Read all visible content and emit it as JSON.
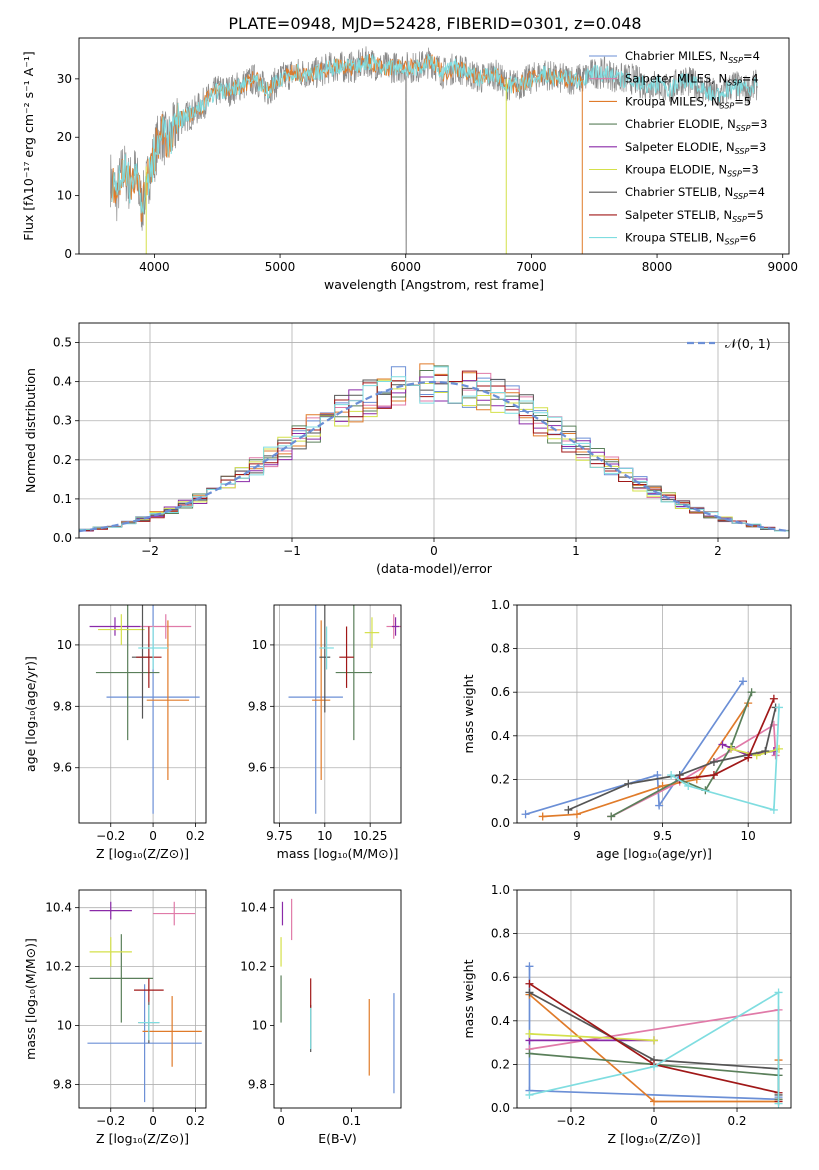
{
  "title": "PLATE=0948, MJD=52428, FIBERID=0301, z=0.048",
  "colors": [
    "#6b8fd6",
    "#e07aa8",
    "#e07b2a",
    "#5a7f5a",
    "#8a2aa8",
    "#d4e04a",
    "#555555",
    "#a01818",
    "#7fdde0",
    "#8a8a8a"
  ],
  "chart_data": [
    {
      "id": "spectrum",
      "type": "line",
      "xlabel": "wavelength [Angstrom, rest frame]",
      "ylabel": "Flux [fλ10⁻¹⁷ erg cm⁻² s⁻¹ A⁻¹]",
      "xlim": [
        3400,
        9050
      ],
      "ylim": [
        0,
        37
      ],
      "xticks": [
        4000,
        5000,
        6000,
        7000,
        8000,
        9000
      ],
      "yticks": [
        0,
        10,
        20,
        30
      ],
      "observed_x": [
        3650,
        3700,
        3750,
        3800,
        3850,
        3900,
        3950,
        4000,
        4050,
        4100,
        4200,
        4300,
        4400,
        4500,
        4600,
        4700,
        4800,
        4900,
        5000,
        5100,
        5200,
        5300,
        5400,
        5500,
        5600,
        5700,
        5800,
        5900,
        6000,
        6100,
        6200,
        6300,
        6400,
        6500,
        6600,
        6700,
        6800,
        6900,
        7000,
        7100,
        7200,
        7300,
        7400,
        7500,
        7600,
        7700,
        7800,
        7900,
        8000,
        8100,
        8200,
        8300,
        8400,
        8500,
        8600,
        8700,
        8800
      ],
      "observed_y": [
        13,
        10,
        15,
        12,
        14,
        8,
        13,
        17,
        21,
        19,
        23,
        24,
        26,
        28,
        28,
        29,
        30,
        28,
        30,
        31,
        31,
        31,
        32,
        32,
        32,
        33,
        32,
        32,
        32,
        32,
        33,
        31,
        32,
        31,
        30,
        31,
        29,
        29,
        30,
        31,
        30,
        30,
        30,
        31,
        31,
        30,
        30,
        29,
        29,
        28,
        30,
        29,
        28,
        27,
        29,
        28,
        29
      ],
      "series": [
        {
          "name": "Chabrier MILES, Nₛₛₚ=4",
          "label_main": "Chabrier MILES, N",
          "label_sub": "SSP",
          "label_tail": "=4"
        },
        {
          "name": "Salpeter MILES, Nₛₛₚ=4",
          "label_main": "Salpeter MILES, N",
          "label_sub": "SSP",
          "label_tail": "=4"
        },
        {
          "name": "Kroupa MILES, Nₛₛₚ=5",
          "label_main": "Kroupa MILES, N",
          "label_sub": "SSP",
          "label_tail": "=5"
        },
        {
          "name": "Chabrier ELODIE, Nₛₛₚ=3",
          "label_main": "Chabrier ELODIE, N",
          "label_sub": "SSP",
          "label_tail": "=3"
        },
        {
          "name": "Salpeter ELODIE, Nₛₛₚ=3",
          "label_main": "Salpeter ELODIE, N",
          "label_sub": "SSP",
          "label_tail": "=3"
        },
        {
          "name": "Kroupa ELODIE, Nₛₛₚ=3",
          "label_main": "Kroupa ELODIE, N",
          "label_sub": "SSP",
          "label_tail": "=3"
        },
        {
          "name": "Chabrier STELIB, Nₛₛₚ=4",
          "label_main": "Chabrier STELIB, N",
          "label_sub": "SSP",
          "label_tail": "=4"
        },
        {
          "name": "Salpeter STELIB, Nₛₛₚ=5",
          "label_main": "Salpeter STELIB, N",
          "label_sub": "SSP",
          "label_tail": "=5"
        },
        {
          "name": "Kroupa STELIB, Nₛₛₚ=6",
          "label_main": "Kroupa STELIB, N",
          "label_sub": "SSP",
          "label_tail": "=6"
        }
      ],
      "legend": "top-right",
      "grid": false
    },
    {
      "id": "residuals",
      "type": "histogram",
      "xlabel": "(data-model)/error",
      "ylabel": "Normed distribution",
      "xlim": [
        -2.5,
        2.5
      ],
      "ylim": [
        0,
        0.55
      ],
      "xticks": [
        -2,
        -1,
        0,
        1,
        2
      ],
      "yticks": [
        0.0,
        0.1,
        0.2,
        0.3,
        0.4,
        0.5
      ],
      "bin_width": 0.1,
      "reference_curve": "N(0,1)",
      "legend_label": "𝒩(0, 1)",
      "legend": "top-right",
      "grid": true
    },
    {
      "id": "age_vs_Z",
      "type": "errorbar",
      "xlabel": "Z [log₁₀(Z/Z⊙)]",
      "ylabel": "age  [log₁₀(age/yr)]",
      "xlim": [
        -0.35,
        0.25
      ],
      "ylim": [
        9.42,
        10.13
      ],
      "xticks": [
        -0.2,
        0.0,
        0.2
      ],
      "yticks": [
        9.6,
        9.8,
        10.0
      ],
      "points": [
        {
          "x": 0.0,
          "y": 9.83,
          "xerr": 0.22,
          "yerr": 0.38,
          "c": 0
        },
        {
          "x": 0.06,
          "y": 10.06,
          "xerr": 0.12,
          "yerr": 0.04,
          "c": 1
        },
        {
          "x": 0.07,
          "y": 9.82,
          "xerr": 0.1,
          "yerr": 0.26,
          "c": 2
        },
        {
          "x": -0.12,
          "y": 9.91,
          "xerr": 0.15,
          "yerr": 0.22,
          "c": 3
        },
        {
          "x": -0.18,
          "y": 10.06,
          "xerr": 0.12,
          "yerr": 0.03,
          "c": 4
        },
        {
          "x": -0.15,
          "y": 10.05,
          "xerr": 0.11,
          "yerr": 0.05,
          "c": 5
        },
        {
          "x": -0.05,
          "y": 9.96,
          "xerr": 0.05,
          "yerr": 0.2,
          "c": 6
        },
        {
          "x": -0.02,
          "y": 9.96,
          "xerr": 0.06,
          "yerr": 0.1,
          "c": 7
        },
        {
          "x": 0.0,
          "y": 9.99,
          "xerr": 0.07,
          "yerr": 0.07,
          "c": 8
        }
      ],
      "grid": true
    },
    {
      "id": "age_vs_mass",
      "type": "errorbar",
      "xlabel": "mass [log₁₀(M/M⊙)]",
      "ylabel": "",
      "xlim": [
        9.72,
        10.42
      ],
      "ylim": [
        9.42,
        10.13
      ],
      "xticks": [
        9.75,
        10.0,
        10.25
      ],
      "yticks": [
        9.6,
        9.8,
        10.0
      ],
      "points": [
        {
          "x": 9.95,
          "y": 9.83,
          "xerr": 0.15,
          "yerr": 0.38,
          "c": 0
        },
        {
          "x": 10.38,
          "y": 10.06,
          "xerr": 0.04,
          "yerr": 0.04,
          "c": 1
        },
        {
          "x": 9.98,
          "y": 9.82,
          "xerr": 0.05,
          "yerr": 0.26,
          "c": 2
        },
        {
          "x": 10.16,
          "y": 9.91,
          "xerr": 0.1,
          "yerr": 0.22,
          "c": 3
        },
        {
          "x": 10.39,
          "y": 10.06,
          "xerr": 0.02,
          "yerr": 0.03,
          "c": 4
        },
        {
          "x": 10.26,
          "y": 10.04,
          "xerr": 0.04,
          "yerr": 0.05,
          "c": 5
        },
        {
          "x": 10.0,
          "y": 9.96,
          "xerr": 0.03,
          "yerr": 0.18,
          "c": 6
        },
        {
          "x": 10.12,
          "y": 9.96,
          "xerr": 0.04,
          "yerr": 0.1,
          "c": 7
        },
        {
          "x": 10.01,
          "y": 9.99,
          "xerr": 0.04,
          "yerr": 0.07,
          "c": 8
        }
      ],
      "grid": true
    },
    {
      "id": "massweight_vs_age",
      "type": "line",
      "xlabel": "age  [log₁₀(age/yr)]",
      "ylabel": "mass weight",
      "xlim": [
        8.65,
        10.25
      ],
      "ylim": [
        0.0,
        1.0
      ],
      "xticks": [
        9.0,
        9.5,
        10.0
      ],
      "yticks": [
        0.0,
        0.2,
        0.4,
        0.6,
        0.8,
        1.0
      ],
      "series": [
        {
          "c": 0,
          "x": [
            8.7,
            9.47,
            9.48,
            9.97
          ],
          "y": [
            0.04,
            0.22,
            0.08,
            0.65
          ]
        },
        {
          "c": 1,
          "x": [
            9.2,
            9.6,
            10.15,
            10.16
          ],
          "y": [
            0.03,
            0.19,
            0.45,
            0.31
          ]
        },
        {
          "c": 2,
          "x": [
            8.8,
            9.0,
            9.5,
            9.7,
            10.0
          ],
          "y": [
            0.03,
            0.04,
            0.17,
            0.2,
            0.55
          ]
        },
        {
          "c": 3,
          "x": [
            9.2,
            9.6,
            9.75,
            9.9,
            10.02
          ],
          "y": [
            0.03,
            0.2,
            0.15,
            0.35,
            0.6
          ]
        },
        {
          "c": 4,
          "x": [
            9.85,
            10.0,
            10.15
          ],
          "y": [
            0.36,
            0.31,
            0.33
          ]
        },
        {
          "c": 5,
          "x": [
            9.9,
            10.05,
            10.18
          ],
          "y": [
            0.34,
            0.31,
            0.34
          ]
        },
        {
          "c": 6,
          "x": [
            8.95,
            9.3,
            9.6,
            9.8,
            10.1,
            10.16
          ],
          "y": [
            0.06,
            0.18,
            0.22,
            0.28,
            0.33,
            0.53
          ]
        },
        {
          "c": 7,
          "x": [
            9.6,
            9.8,
            10.0,
            10.15
          ],
          "y": [
            0.2,
            0.22,
            0.3,
            0.57
          ]
        },
        {
          "c": 8,
          "x": [
            9.55,
            9.65,
            10.15,
            10.18
          ],
          "y": [
            0.22,
            0.17,
            0.06,
            0.53
          ]
        }
      ],
      "grid": true
    },
    {
      "id": "mass_vs_Z",
      "type": "errorbar",
      "xlabel": "Z [log₁₀(Z/Z⊙)]",
      "ylabel": "mass [log₁₀(M/M⊙)]",
      "xlim": [
        -0.35,
        0.25
      ],
      "ylim": [
        9.72,
        10.46
      ],
      "xticks": [
        -0.2,
        0.0,
        0.2
      ],
      "yticks": [
        9.8,
        10.0,
        10.2,
        10.4
      ],
      "points": [
        {
          "x": -0.04,
          "y": 9.94,
          "xerr": 0.27,
          "yerr": 0.2,
          "c": 0
        },
        {
          "x": 0.1,
          "y": 10.38,
          "xerr": 0.1,
          "yerr": 0.04,
          "c": 1
        },
        {
          "x": 0.09,
          "y": 9.98,
          "xerr": 0.14,
          "yerr": 0.12,
          "c": 2
        },
        {
          "x": -0.15,
          "y": 10.16,
          "xerr": 0.15,
          "yerr": 0.15,
          "c": 3
        },
        {
          "x": -0.2,
          "y": 10.39,
          "xerr": 0.1,
          "yerr": 0.03,
          "c": 4
        },
        {
          "x": -0.2,
          "y": 10.25,
          "xerr": 0.1,
          "yerr": 0.05,
          "c": 5
        },
        {
          "x": -0.02,
          "y": 10.01,
          "xerr": 0.05,
          "yerr": 0.07,
          "c": 6
        },
        {
          "x": -0.02,
          "y": 10.12,
          "xerr": 0.07,
          "yerr": 0.04,
          "c": 7
        },
        {
          "x": -0.02,
          "y": 10.01,
          "xerr": 0.05,
          "yerr": 0.06,
          "c": 8
        }
      ],
      "grid": true
    },
    {
      "id": "mass_vs_EBV",
      "type": "errorbar",
      "xlabel": "E(B-V)",
      "ylabel": "",
      "xlim": [
        -0.01,
        0.17
      ],
      "ylim": [
        9.72,
        10.46
      ],
      "xticks": [
        0.0,
        0.1
      ],
      "yticks": [
        9.8,
        10.0,
        10.2,
        10.4
      ],
      "points": [
        {
          "x": 0.16,
          "y": 9.94,
          "xerr": 0,
          "yerr": 0.17,
          "c": 0
        },
        {
          "x": 0.015,
          "y": 10.36,
          "xerr": 0,
          "yerr": 0.07,
          "c": 1
        },
        {
          "x": 0.125,
          "y": 9.96,
          "xerr": 0,
          "yerr": 0.13,
          "c": 2
        },
        {
          "x": 0.0,
          "y": 10.09,
          "xerr": 0,
          "yerr": 0.08,
          "c": 3
        },
        {
          "x": 0.002,
          "y": 10.38,
          "xerr": 0,
          "yerr": 0.04,
          "c": 4
        },
        {
          "x": 0.0,
          "y": 10.25,
          "xerr": 0,
          "yerr": 0.05,
          "c": 5
        },
        {
          "x": 0.042,
          "y": 9.99,
          "xerr": 0,
          "yerr": 0.08,
          "c": 6
        },
        {
          "x": 0.042,
          "y": 10.11,
          "xerr": 0,
          "yerr": 0.05,
          "c": 7
        },
        {
          "x": 0.042,
          "y": 9.99,
          "xerr": 0,
          "yerr": 0.07,
          "c": 8
        }
      ],
      "grid": false
    },
    {
      "id": "massweight_vs_Z",
      "type": "line",
      "xlabel": "Z [log₁₀(Z/Z⊙)]",
      "ylabel": "mass weight",
      "xlim": [
        -0.33,
        0.33
      ],
      "ylim": [
        0.0,
        1.0
      ],
      "xticks": [
        -0.2,
        0.0,
        0.2
      ],
      "yticks": [
        0.0,
        0.2,
        0.4,
        0.6,
        0.8,
        1.0
      ],
      "series": [
        {
          "c": 0,
          "x": [
            -0.3,
            -0.3,
            0.3,
            0.3
          ],
          "y": [
            0.65,
            0.08,
            0.04,
            0.05
          ]
        },
        {
          "c": 1,
          "x": [
            -0.3,
            0.3,
            0.3
          ],
          "y": [
            0.27,
            0.45,
            0.04
          ]
        },
        {
          "c": 2,
          "x": [
            -0.3,
            0.0,
            0.3,
            0.3
          ],
          "y": [
            0.52,
            0.03,
            0.03,
            0.22
          ]
        },
        {
          "c": 3,
          "x": [
            -0.3,
            0.3,
            0.3
          ],
          "y": [
            0.25,
            0.15,
            0.04
          ]
        },
        {
          "c": 4,
          "x": [
            -0.3,
            0.0
          ],
          "y": [
            0.31,
            0.31
          ]
        },
        {
          "c": 5,
          "x": [
            -0.3,
            0.0
          ],
          "y": [
            0.34,
            0.31
          ]
        },
        {
          "c": 6,
          "x": [
            -0.3,
            0.0,
            0.3,
            0.3
          ],
          "y": [
            0.53,
            0.22,
            0.18,
            0.06
          ]
        },
        {
          "c": 7,
          "x": [
            -0.3,
            0.0,
            0.3,
            0.3
          ],
          "y": [
            0.57,
            0.2,
            0.07,
            0.03
          ]
        },
        {
          "c": 8,
          "x": [
            -0.3,
            0.0,
            0.3,
            0.3
          ],
          "y": [
            0.06,
            0.19,
            0.53,
            0.02
          ]
        }
      ],
      "grid": true
    }
  ]
}
